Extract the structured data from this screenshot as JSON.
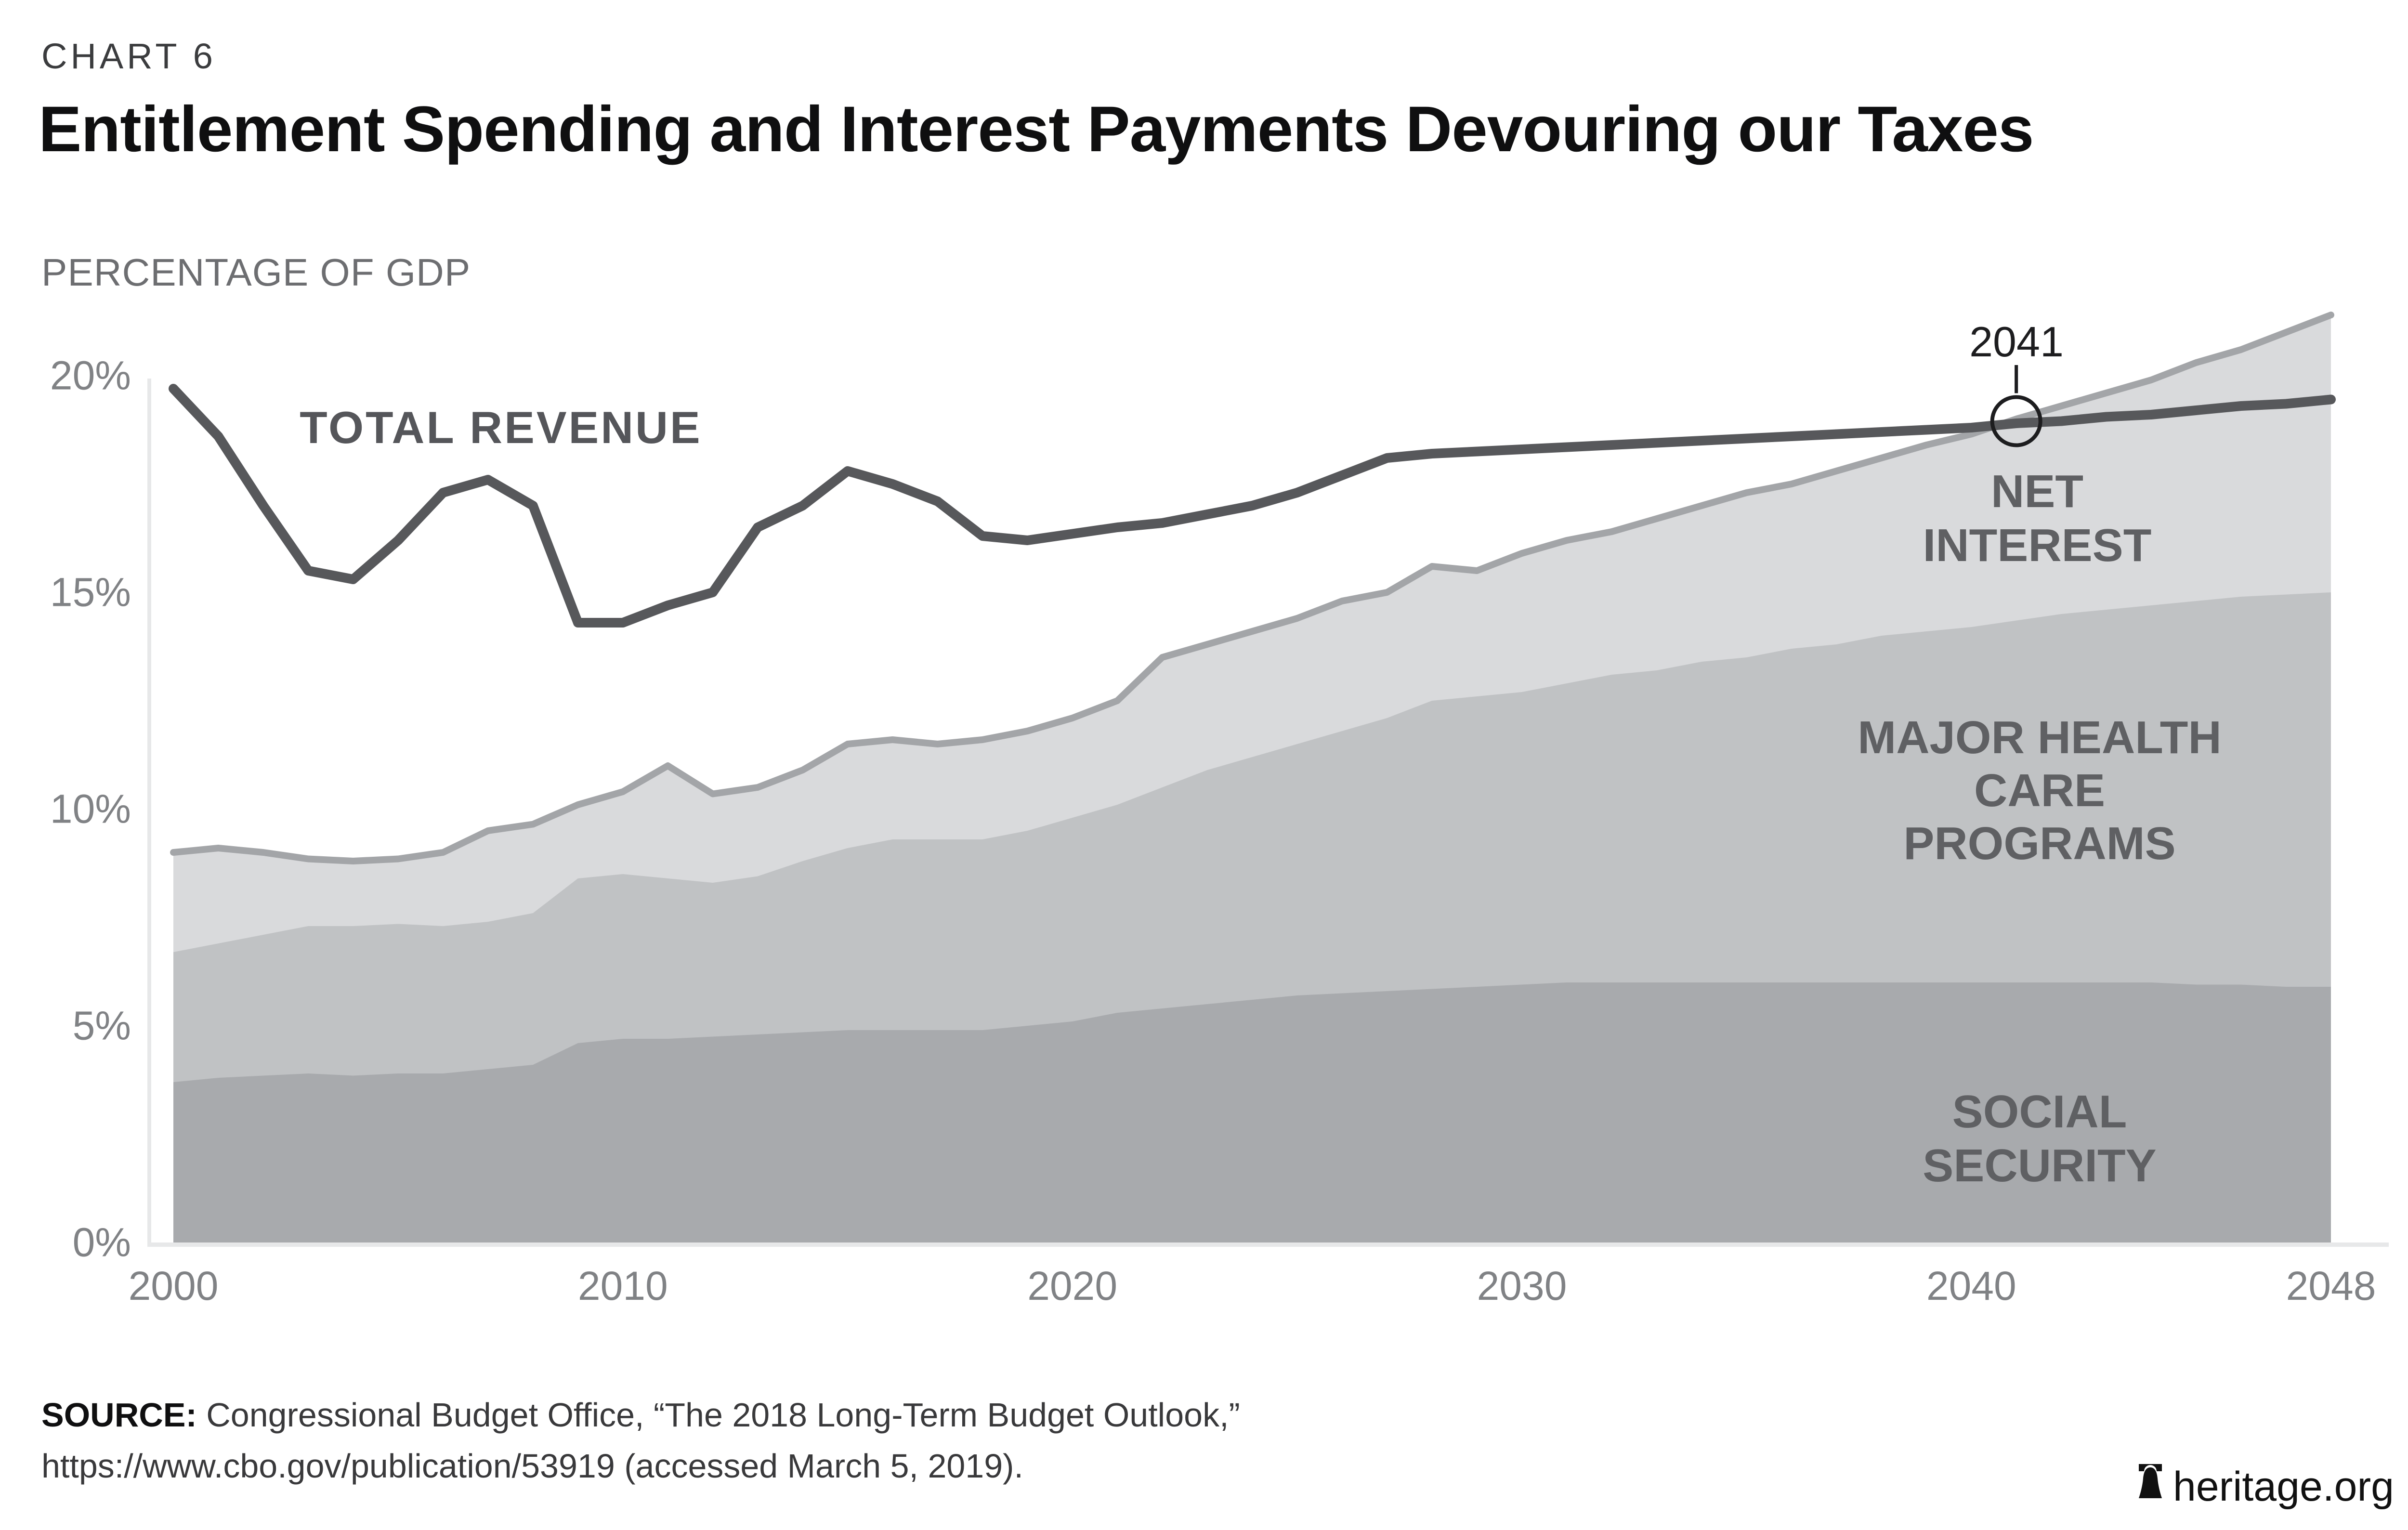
{
  "header": {
    "chart_number": "CHART 6",
    "title": "Entitlement Spending and Interest Payments Devouring our Taxes",
    "subtitle": "PERCENTAGE OF GDP"
  },
  "labels": {
    "total_revenue": "TOTAL REVENUE",
    "net_interest": "NET\nINTEREST",
    "major_health": "MAJOR HEALTH CARE\nPROGRAMS",
    "social_security": "SOCIAL\nSECURITY"
  },
  "footer": {
    "source_label": "SOURCE:",
    "source_line1": " Congressional Budget Office, “The 2018 Long-Term Budget Outlook,”",
    "source_line2": "https://www.cbo.gov/publication/53919 (accessed March 5, 2019).",
    "brand": "heritage.org",
    "brand_icon": "liberty-bell-icon"
  },
  "chart_data": {
    "type": "area",
    "title": "Entitlement Spending and Interest Payments Devouring our Taxes",
    "ylabel": "PERCENTAGE OF GDP",
    "xlabel": "",
    "grid": false,
    "legend_position": "labels-inside-areas",
    "ylim": [
      0,
      22
    ],
    "xlim": [
      2000,
      2048
    ],
    "y_ticks": [
      {
        "label": "20%",
        "value": 20
      },
      {
        "label": "15%",
        "value": 15
      },
      {
        "label": "10%",
        "value": 10
      },
      {
        "label": "5%",
        "value": 5
      },
      {
        "label": "0%",
        "value": 0
      }
    ],
    "x_ticks": [
      {
        "label": "2000",
        "year": 2000
      },
      {
        "label": "2010",
        "year": 2010
      },
      {
        "label": "2020",
        "year": 2020
      },
      {
        "label": "2030",
        "year": 2030
      },
      {
        "label": "2040",
        "year": 2040
      },
      {
        "label": "2048",
        "year": 2048
      }
    ],
    "years": [
      2000,
      2001,
      2002,
      2003,
      2004,
      2005,
      2006,
      2007,
      2008,
      2009,
      2010,
      2011,
      2012,
      2013,
      2014,
      2015,
      2016,
      2017,
      2018,
      2019,
      2020,
      2021,
      2022,
      2023,
      2024,
      2025,
      2026,
      2027,
      2028,
      2029,
      2030,
      2031,
      2032,
      2033,
      2034,
      2035,
      2036,
      2037,
      2038,
      2039,
      2040,
      2041,
      2042,
      2043,
      2044,
      2045,
      2046,
      2047,
      2048
    ],
    "stacked_areas_cumulative": [
      {
        "name": "Social Security",
        "color": "#A8AAAD",
        "cumulative_top": [
          3.7,
          3.8,
          3.85,
          3.9,
          3.85,
          3.9,
          3.9,
          4.0,
          4.1,
          4.6,
          4.7,
          4.7,
          4.75,
          4.8,
          4.85,
          4.9,
          4.9,
          4.9,
          4.9,
          5.0,
          5.1,
          5.3,
          5.4,
          5.5,
          5.6,
          5.7,
          5.75,
          5.8,
          5.85,
          5.9,
          5.95,
          6.0,
          6.0,
          6.0,
          6.0,
          6.0,
          6.0,
          6.0,
          6.0,
          6.0,
          6.0,
          6.0,
          6.0,
          6.0,
          6.0,
          5.95,
          5.95,
          5.9,
          5.9
        ]
      },
      {
        "name": "Major Health Care Programs",
        "color": "#C0C2C4",
        "cumulative_top": [
          6.7,
          6.9,
          7.1,
          7.3,
          7.3,
          7.35,
          7.3,
          7.4,
          7.6,
          8.4,
          8.5,
          8.4,
          8.3,
          8.45,
          8.8,
          9.1,
          9.3,
          9.3,
          9.3,
          9.5,
          9.8,
          10.1,
          10.5,
          10.9,
          11.2,
          11.5,
          11.8,
          12.1,
          12.5,
          12.6,
          12.7,
          12.9,
          13.1,
          13.2,
          13.4,
          13.5,
          13.7,
          13.8,
          14.0,
          14.1,
          14.2,
          14.35,
          14.5,
          14.6,
          14.7,
          14.8,
          14.9,
          14.95,
          15.0
        ]
      },
      {
        "name": "Net Interest",
        "color": "#D9DADC",
        "top_stroke_color": "#A3A5A8",
        "cumulative_top": [
          9.0,
          9.1,
          9.0,
          8.85,
          8.8,
          8.85,
          9.0,
          9.5,
          9.65,
          10.1,
          10.4,
          11.0,
          10.35,
          10.5,
          10.9,
          11.5,
          11.6,
          11.5,
          11.6,
          11.8,
          12.1,
          12.5,
          13.5,
          13.8,
          14.1,
          14.4,
          14.8,
          15.0,
          15.6,
          15.5,
          15.9,
          16.2,
          16.4,
          16.7,
          17.0,
          17.3,
          17.5,
          17.8,
          18.1,
          18.4,
          18.65,
          19.0,
          19.3,
          19.6,
          19.9,
          20.3,
          20.6,
          21.0,
          21.4
        ]
      }
    ],
    "line_series": [
      {
        "name": "Total Revenue",
        "color": "#57585B",
        "values": [
          19.7,
          18.6,
          17.0,
          15.5,
          15.3,
          16.2,
          17.3,
          17.6,
          17.0,
          14.3,
          14.3,
          14.7,
          15.0,
          16.5,
          17.0,
          17.8,
          17.5,
          17.1,
          16.3,
          16.2,
          16.35,
          16.5,
          16.6,
          16.8,
          17.0,
          17.3,
          17.7,
          18.1,
          18.2,
          18.25,
          18.3,
          18.35,
          18.4,
          18.45,
          18.5,
          18.55,
          18.6,
          18.65,
          18.7,
          18.75,
          18.8,
          18.9,
          18.95,
          19.05,
          19.1,
          19.2,
          19.3,
          19.35,
          19.45
        ]
      }
    ],
    "annotation": {
      "label": "2041",
      "year": 2041,
      "value": 18.95,
      "meaning": "year when entitlement spending plus net interest crosses total revenue"
    },
    "axis_color": "#E7E8E9",
    "tick_color": "#808285"
  }
}
